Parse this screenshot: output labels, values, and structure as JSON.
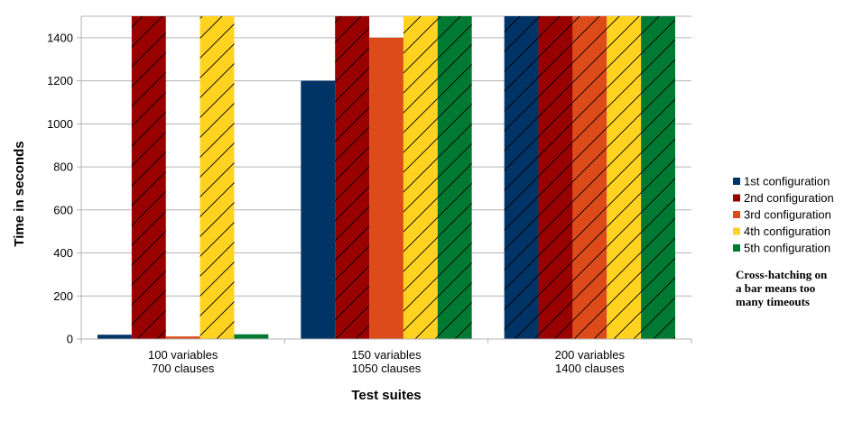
{
  "chart_data": {
    "type": "bar",
    "categories": [
      [
        "100 variables",
        "700 clauses"
      ],
      [
        "150 variables",
        "1050 clauses"
      ],
      [
        "200 variables",
        "1400 clauses"
      ]
    ],
    "xlabel": "Test suites",
    "ylabel": "Time in seconds",
    "ylim": [
      0,
      1500
    ],
    "yticks": [
      0,
      200,
      400,
      600,
      800,
      1000,
      1200,
      1400
    ],
    "grid": true,
    "legend_position": "right",
    "series": [
      {
        "name": "1st configuration",
        "color": "#003366",
        "values": [
          20,
          1200,
          1500
        ],
        "hatched": [
          false,
          false,
          true
        ]
      },
      {
        "name": "2nd configuration",
        "color": "#990000",
        "values": [
          1500,
          1500,
          1500
        ],
        "hatched": [
          true,
          true,
          true
        ]
      },
      {
        "name": "3rd configuration",
        "color": "#dd4b1a",
        "values": [
          12,
          1400,
          1500
        ],
        "hatched": [
          false,
          false,
          true
        ]
      },
      {
        "name": "4th configuration",
        "color": "#ffd320",
        "values": [
          1500,
          1500,
          1500
        ],
        "hatched": [
          true,
          true,
          true
        ]
      },
      {
        "name": "5th configuration",
        "color": "#007a33",
        "values": [
          22,
          1500,
          1500
        ],
        "hatched": [
          false,
          true,
          true
        ]
      }
    ],
    "annotation": [
      "Cross-hatching on",
      "a bar means too",
      "many timeouts"
    ]
  }
}
